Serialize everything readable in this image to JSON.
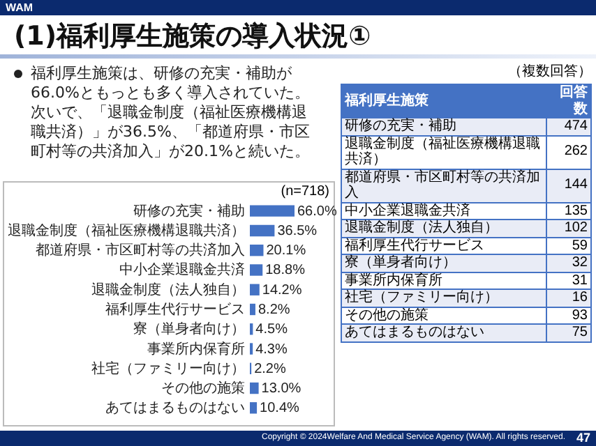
{
  "chart_data": [
    {
      "type": "bar",
      "orientation": "horizontal",
      "title": "(1)福利厚生施策の導入状況①",
      "subtitle": "福利厚生施策は、研修の充実・補助が66.0%ともっとも多く導入されていた。次いで、「退職金制度（福祉医療機構退職共済）」が36.5%、「都道府県・市区町村等の共済加入」が20.1%と続いた。",
      "annotations": [
        "WAM",
        "(n=718)",
        "Copyright © 2024Welfare And Medical Service Agency (WAM). All rights reserved.",
        "47"
      ],
      "categories": [
        "研修の充実・補助",
        "退職金制度（福祉医療機構退職共済）",
        "都道府県・市区町村等の共済加入",
        "中小企業退職金共済",
        "退職金制度（法人独自）",
        "福利厚生代行サービス",
        "寮（単身者向け）",
        "事業所内保育所",
        "社宅（ファミリー向け）",
        "その他の施策",
        "あてはまるものはない"
      ],
      "values": [
        66.0,
        36.5,
        20.1,
        18.8,
        14.2,
        8.2,
        4.5,
        4.3,
        2.2,
        13.0,
        10.4
      ],
      "value_labels": [
        "66.0%",
        "36.5%",
        "20.1%",
        "18.8%",
        "14.2%",
        "8.2%",
        "4.5%",
        "4.3%",
        "2.2%",
        "13.0%",
        "10.4%"
      ],
      "color": "#4472c4"
    },
    {
      "type": "other",
      "annotations": [
        "（複数回答）"
      ],
      "xlabel": "福利厚生施策",
      "ylabel": "回答数",
      "categories": [
        "研修の充実・補助",
        "退職金制度（福祉医療機構退職共済）",
        "都道府県・市区町村等の共済加入",
        "中小企業退職金共済",
        "退職金制度（法人独自）",
        "福利厚生代行サービス",
        "寮（単身者向け）",
        "事業所内保育所",
        "社宅（ファミリー向け）",
        "その他の施策",
        "あてはまるものはない"
      ],
      "values": [
        474,
        262,
        144,
        135,
        102,
        59,
        32,
        31,
        16,
        93,
        75
      ],
      "data_labels": true
    }
  ]
}
